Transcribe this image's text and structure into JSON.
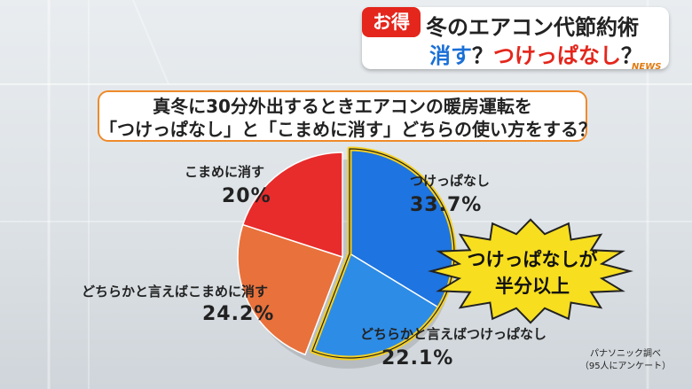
{
  "header": {
    "badge": "お得",
    "title": "冬のエアコン代節約術",
    "subtitle_part1": "消す",
    "subtitle_part2": "？",
    "subtitle_part3": "つけっぱなし",
    "subtitle_part4": "？",
    "watermark": "NEWS"
  },
  "question": {
    "line1": "真冬に30分外出するときエアコンの暖房運転を",
    "line2": "「つけっぱなし」と「こまめに消す」どちらの使い方をする？"
  },
  "chart_data": {
    "type": "pie",
    "slices": [
      {
        "label": "つけっぱなし",
        "value": 33.7,
        "value_label": "33.7%",
        "color": "#1e74e0"
      },
      {
        "label": "どちらかと言えばつけっぱなし",
        "value": 22.1,
        "value_label": "22.1%",
        "color": "#2d8ce6"
      },
      {
        "label": "どちらかと言えばこまめに消す",
        "value": 24.2,
        "value_label": "24.2%",
        "color": "#e9713c"
      },
      {
        "label": "こまめに消す",
        "value": 20.0,
        "value_label": "20%",
        "color": "#e82b2b"
      }
    ],
    "highlight": "つけっぱなし + どちらかと言えばつけっぱなし",
    "highlight_color": "#f5d020"
  },
  "callout": {
    "line1": "つけっぱなしが",
    "line2": "半分以上",
    "color": "#f7de1f"
  },
  "source": {
    "line1": "パナソニック調べ",
    "line2": "（95人にアンケート）"
  }
}
